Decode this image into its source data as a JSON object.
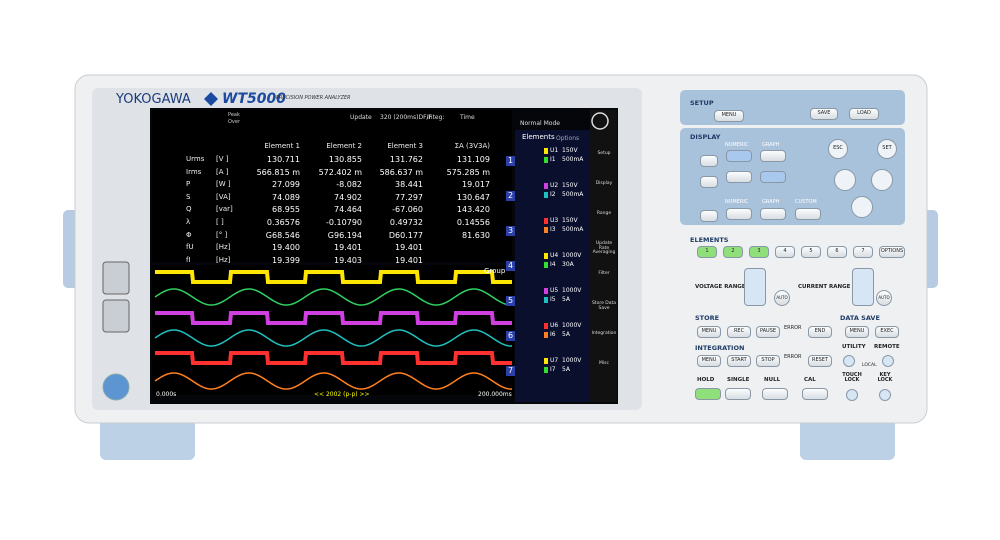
{
  "header": {
    "brand": "YOKOGAWA",
    "model": "WT5000",
    "subtitle": "PRECISION POWER ANALYZER"
  },
  "status": {
    "peak": "Peak",
    "over": "Over",
    "update": "Update",
    "update_value": "320 (200ms)DF/F",
    "integ": "Integ:",
    "time": "Time",
    "mode": "Normal Mode"
  },
  "table": {
    "columns": [
      "Element 1",
      "Element 2",
      "Element 3",
      "ΣA (3V3A)"
    ],
    "rows": [
      {
        "label": "Urms",
        "unit": "[V ]",
        "values": [
          "130.711",
          "130.855",
          "131.762",
          "131.109"
        ]
      },
      {
        "label": "Irms",
        "unit": "[A ]",
        "values": [
          "566.815 m",
          "572.402 m",
          "586.637 m",
          "575.285 m"
        ]
      },
      {
        "label": "P",
        "unit": "[W ]",
        "values": [
          "27.099",
          "-8.082",
          "38.441",
          "19.017"
        ]
      },
      {
        "label": "S",
        "unit": "[VA]",
        "values": [
          "74.089",
          "74.902",
          "77.297",
          "130.647"
        ]
      },
      {
        "label": "Q",
        "unit": "[var]",
        "values": [
          "68.955",
          "74.464",
          "-67.060",
          "143.420"
        ]
      },
      {
        "label": "λ",
        "unit": "[ ]",
        "values": [
          "0.36576",
          "-0.10790",
          "0.49732",
          "0.14556"
        ]
      },
      {
        "label": "Φ",
        "unit": "[° ]",
        "values": [
          "G68.546",
          "G96.194",
          "D60.177",
          "81.630"
        ]
      },
      {
        "label": "fU",
        "unit": "[Hz]",
        "values": [
          "19.400",
          "19.401",
          "19.401"
        ]
      },
      {
        "label": "fI",
        "unit": "[Hz]",
        "values": [
          "19.399",
          "19.403",
          "19.401"
        ]
      }
    ]
  },
  "elements": {
    "title": "Elements",
    "options": "Options",
    "items": [
      {
        "number": "1",
        "u": "U1",
        "u_range": "150V",
        "i": "I1",
        "i_range": "500mA"
      },
      {
        "number": "2",
        "u": "U2",
        "u_range": "150V",
        "i": "I2",
        "i_range": "500mA"
      },
      {
        "number": "3",
        "u": "U3",
        "u_range": "150V",
        "i": "I3",
        "i_range": "500mA"
      },
      {
        "number": "4",
        "u": "U4",
        "u_range": "1000V",
        "i": "I4",
        "i_range": "30A"
      },
      {
        "number": "5",
        "u": "U5",
        "u_range": "1000V",
        "i": "I5",
        "i_range": "5A"
      },
      {
        "number": "6",
        "u": "U6",
        "u_range": "1000V",
        "i": "I6",
        "i_range": "5A"
      },
      {
        "number": "7",
        "u": "U7",
        "u_range": "1000V",
        "i": "I7",
        "i_range": "5A"
      }
    ]
  },
  "menu": [
    "Setup",
    "Display",
    "Range",
    "Update Rate Averaging",
    "Filter",
    "Store Data Save",
    "Integration",
    "Misc"
  ],
  "waveform": {
    "group": "Group",
    "start": "0.000s",
    "center": "<< 2002 (p-p) >>",
    "end": "200.000ms"
  },
  "panel": {
    "setup": {
      "title": "SETUP",
      "buttons": [
        "MENU",
        "SAVE",
        "LOAD"
      ]
    },
    "display": {
      "title": "DISPLAY",
      "buttons": [
        "NUMERIC",
        "GRAPH",
        "NUMERIC",
        "GRAPH",
        "CUSTOM",
        "ESC",
        "SET"
      ]
    },
    "elements": {
      "title": "ELEMENTS",
      "buttons": [
        "1",
        "2",
        "3",
        "4",
        "5",
        "6",
        "7",
        "OPTIONS"
      ]
    },
    "range": {
      "voltage": "VOLTAGE RANGE",
      "current": "CURRENT RANGE",
      "auto": [
        "AUTO",
        "AUTO"
      ]
    },
    "store": {
      "title": "STORE",
      "buttons": [
        "MENU",
        "REC",
        "PAUSE",
        "ERROR",
        "END"
      ]
    },
    "data_save": {
      "title": "DATA SAVE",
      "buttons": [
        "MENU",
        "EXEC"
      ]
    },
    "integration": {
      "title": "INTEGRATION",
      "buttons": [
        "MENU",
        "START",
        "STOP",
        "ERROR",
        "RESET"
      ]
    },
    "utility": {
      "utility": "UTILITY",
      "remote": "REMOTE",
      "local": "LOCAL"
    },
    "bottom": {
      "buttons": [
        "HOLD",
        "SINGLE",
        "NULL",
        "CAL",
        "TOUCH LOCK",
        "KEY LOCK"
      ]
    }
  }
}
